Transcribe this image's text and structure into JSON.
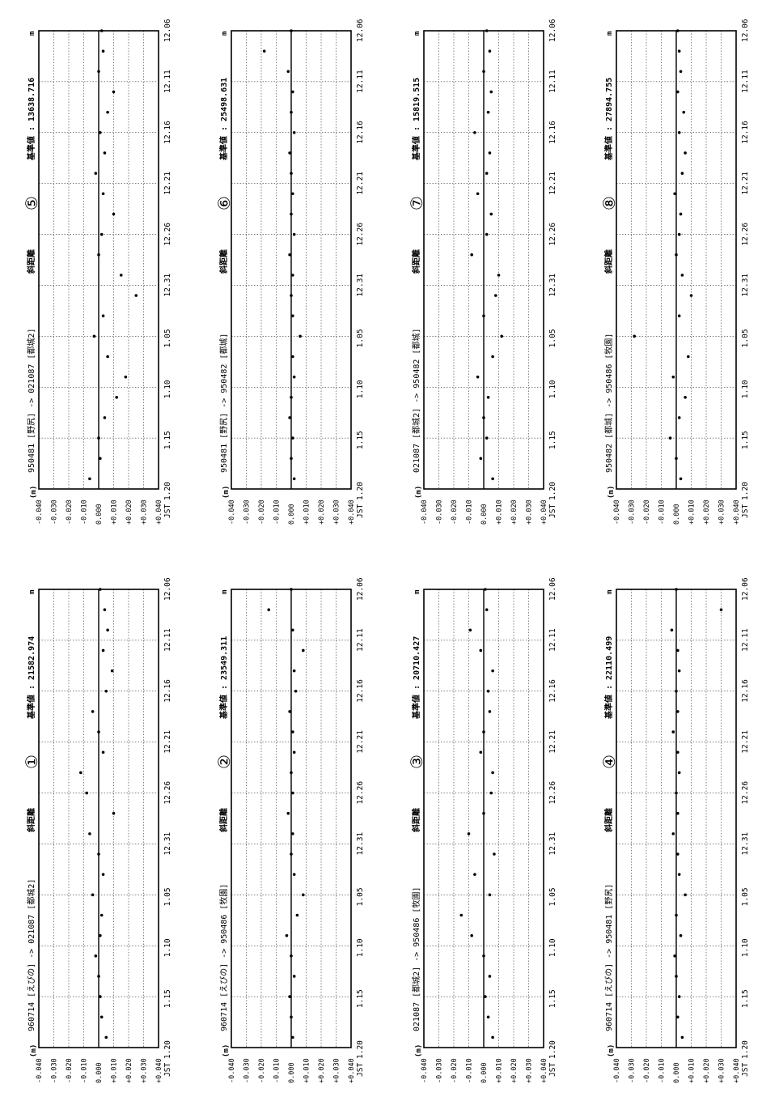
{
  "chart_data": [
    {
      "type": "scatter",
      "number_label": "①",
      "title": "960714 [えびの] -> 021087 [都城2]",
      "measure_label": "斜距離",
      "reference": "基準値 : 21582.974",
      "unit": "m",
      "ylabel": "(m)",
      "xlabel": "JST",
      "x_ticks": [
        "12.06",
        "12.11",
        "12.16",
        "12.21",
        "12.26",
        "12.31",
        "1.05",
        "1.10",
        "1.15",
        "1.20"
      ],
      "y_ticks": [
        "+0.040",
        "+0.030",
        "+0.020",
        "+0.010",
        "0.000",
        "-0.010",
        "-0.020",
        "-0.030",
        "-0.040"
      ],
      "ylim": [
        -0.04,
        0.04
      ],
      "grid": true,
      "series": [
        {
          "x_days": [
            1,
            3,
            5,
            7,
            9,
            11,
            13,
            15,
            17,
            19,
            21,
            23,
            25,
            27,
            29,
            31,
            33,
            35,
            37,
            39,
            41,
            43,
            45
          ],
          "y": [
            0.005,
            0.002,
            0.001,
            0.0,
            -0.002,
            0.001,
            0.002,
            -0.004,
            0.003,
            0.0,
            -0.006,
            0.01,
            -0.008,
            -0.012,
            0.003,
            0.0,
            -0.004,
            0.005,
            0.009,
            0.003,
            0.006,
            0.004,
            0.001
          ]
        }
      ]
    },
    {
      "type": "scatter",
      "number_label": "②",
      "title": "960714 [えびの] -> 950486 [牧園]",
      "measure_label": "斜距離",
      "reference": "基準値 : 23549.311",
      "unit": "m",
      "ylabel": "(m)",
      "xlabel": "JST",
      "x_ticks": [
        "12.06",
        "12.11",
        "12.16",
        "12.21",
        "12.26",
        "12.31",
        "1.05",
        "1.10",
        "1.15",
        "1.20"
      ],
      "y_ticks": [
        "+0.040",
        "+0.030",
        "+0.020",
        "+0.010",
        "0.000",
        "-0.010",
        "-0.020",
        "-0.030",
        "-0.040"
      ],
      "ylim": [
        -0.04,
        0.04
      ],
      "grid": true,
      "series": [
        {
          "x_days": [
            1,
            3,
            5,
            7,
            9,
            11,
            13,
            15,
            17,
            19,
            21,
            23,
            25,
            27,
            29,
            31,
            33,
            35,
            37,
            39,
            41,
            43,
            45
          ],
          "y": [
            0.001,
            0.0,
            -0.001,
            0.002,
            0.0,
            -0.003,
            0.004,
            0.008,
            0.002,
            0.0,
            0.001,
            -0.002,
            0.001,
            0.0,
            0.002,
            0.001,
            -0.001,
            0.003,
            0.002,
            0.008,
            0.001,
            -0.015,
            0.0
          ]
        }
      ]
    },
    {
      "type": "scatter",
      "number_label": "③",
      "title": "021087 [都城2] -> 950486 [牧園]",
      "measure_label": "斜距離",
      "reference": "基準値 : 20710.427",
      "unit": "m",
      "ylabel": "(m)",
      "xlabel": "JST",
      "x_ticks": [
        "12.06",
        "12.11",
        "12.16",
        "12.21",
        "12.26",
        "12.31",
        "1.05",
        "1.10",
        "1.15",
        "1.20"
      ],
      "y_ticks": [
        "+0.040",
        "+0.030",
        "+0.020",
        "+0.010",
        "0.000",
        "-0.010",
        "-0.020",
        "-0.030",
        "-0.040"
      ],
      "ylim": [
        -0.04,
        0.04
      ],
      "grid": true,
      "series": [
        {
          "x_days": [
            1,
            3,
            5,
            7,
            9,
            11,
            13,
            15,
            17,
            19,
            21,
            23,
            25,
            27,
            29,
            31,
            33,
            35,
            37,
            39,
            41,
            43,
            45
          ],
          "y": [
            0.006,
            0.003,
            0.001,
            0.004,
            0.0,
            -0.008,
            -0.015,
            0.004,
            -0.006,
            0.007,
            -0.01,
            0.0,
            0.005,
            0.006,
            -0.002,
            0.0,
            0.004,
            0.003,
            0.006,
            -0.002,
            -0.009,
            0.002,
            0.001
          ]
        }
      ]
    },
    {
      "type": "scatter",
      "number_label": "④",
      "title": "960714 [えびの] -> 950481 [野尻]",
      "measure_label": "斜距離",
      "reference": "基準値 : 22110.499",
      "unit": "m",
      "ylabel": "(m)",
      "xlabel": "JST",
      "x_ticks": [
        "12.06",
        "12.11",
        "12.16",
        "12.21",
        "12.26",
        "12.31",
        "1.05",
        "1.10",
        "1.15",
        "1.20"
      ],
      "y_ticks": [
        "+0.040",
        "+0.030",
        "+0.020",
        "+0.010",
        "0.000",
        "-0.010",
        "-0.020",
        "-0.030",
        "-0.040"
      ],
      "ylim": [
        -0.04,
        0.04
      ],
      "grid": true,
      "series": [
        {
          "x_days": [
            1,
            3,
            5,
            7,
            9,
            11,
            13,
            15,
            17,
            19,
            21,
            23,
            25,
            27,
            29,
            31,
            33,
            35,
            37,
            39,
            41,
            43,
            45
          ],
          "y": [
            0.004,
            0.001,
            0.002,
            0.0,
            -0.001,
            0.003,
            0.0,
            0.006,
            0.002,
            0.001,
            -0.002,
            0.001,
            0.0,
            0.002,
            0.001,
            -0.002,
            0.001,
            0.0,
            0.002,
            0.001,
            -0.003,
            0.03,
            0.0
          ]
        }
      ]
    },
    {
      "type": "scatter",
      "number_label": "⑤",
      "title": "950481 [野尻] -> 021087 [都城2]",
      "measure_label": "斜距離",
      "reference": "基準値 : 13638.716",
      "unit": "m",
      "ylabel": "(m)",
      "xlabel": "JST",
      "x_ticks": [
        "12.06",
        "12.11",
        "12.16",
        "12.21",
        "12.26",
        "12.31",
        "1.05",
        "1.10",
        "1.15",
        "1.20"
      ],
      "y_ticks": [
        "+0.040",
        "+0.030",
        "+0.020",
        "+0.010",
        "0.000",
        "-0.010",
        "-0.020",
        "-0.030",
        "-0.040"
      ],
      "ylim": [
        -0.04,
        0.04
      ],
      "grid": true,
      "series": [
        {
          "x_days": [
            1,
            3,
            5,
            7,
            9,
            11,
            13,
            15,
            17,
            19,
            21,
            23,
            25,
            27,
            29,
            31,
            33,
            35,
            37,
            39,
            41,
            43,
            45
          ],
          "y": [
            -0.006,
            0.001,
            0.0,
            0.004,
            0.012,
            0.018,
            0.006,
            -0.003,
            0.003,
            0.025,
            0.015,
            0.0,
            0.002,
            0.01,
            0.003,
            -0.002,
            0.004,
            0.001,
            0.006,
            0.01,
            0.0,
            0.003,
            0.002
          ]
        }
      ]
    },
    {
      "type": "scatter",
      "number_label": "⑥",
      "title": "950481 [野尻] -> 950482 [都城]",
      "measure_label": "斜距離",
      "reference": "基準値 : 25498.631",
      "unit": "m",
      "ylabel": "(m)",
      "xlabel": "JST",
      "x_ticks": [
        "12.06",
        "12.11",
        "12.16",
        "12.21",
        "12.26",
        "12.31",
        "1.05",
        "1.10",
        "1.15",
        "1.20"
      ],
      "y_ticks": [
        "+0.040",
        "+0.030",
        "+0.020",
        "+0.010",
        "0.000",
        "-0.010",
        "-0.020",
        "-0.030",
        "-0.040"
      ],
      "ylim": [
        -0.04,
        0.04
      ],
      "grid": true,
      "series": [
        {
          "x_days": [
            1,
            3,
            5,
            7,
            9,
            11,
            13,
            15,
            17,
            19,
            21,
            23,
            25,
            27,
            29,
            31,
            33,
            35,
            37,
            39,
            41,
            43,
            45
          ],
          "y": [
            0.002,
            0.0,
            0.001,
            -0.001,
            0.0,
            0.002,
            0.001,
            0.006,
            0.001,
            0.0,
            0.001,
            -0.001,
            0.002,
            0.0,
            0.001,
            0.0,
            -0.001,
            0.002,
            0.0,
            0.001,
            -0.002,
            -0.018,
            0.0
          ]
        }
      ]
    },
    {
      "type": "scatter",
      "number_label": "⑦",
      "title": "021087 [都城2] -> 950482 [都城]",
      "measure_label": "斜距離",
      "reference": "基準値 : 15819.515",
      "unit": "m",
      "ylabel": "(m)",
      "xlabel": "JST",
      "x_ticks": [
        "12.06",
        "12.11",
        "12.16",
        "12.21",
        "12.26",
        "12.31",
        "1.05",
        "1.10",
        "1.15",
        "1.20"
      ],
      "y_ticks": [
        "+0.040",
        "+0.030",
        "+0.020",
        "+0.010",
        "0.000",
        "-0.010",
        "-0.020",
        "-0.030",
        "-0.040"
      ],
      "ylim": [
        -0.04,
        0.04
      ],
      "grid": true,
      "series": [
        {
          "x_days": [
            1,
            3,
            5,
            7,
            9,
            11,
            13,
            15,
            17,
            19,
            21,
            23,
            25,
            27,
            29,
            31,
            33,
            35,
            37,
            39,
            41,
            43,
            45
          ],
          "y": [
            0.006,
            -0.002,
            0.002,
            0.0,
            0.003,
            -0.004,
            0.006,
            0.012,
            0.0,
            0.008,
            0.01,
            -0.008,
            0.002,
            0.005,
            -0.004,
            0.002,
            0.004,
            -0.006,
            0.003,
            0.005,
            0.0,
            0.004,
            0.002
          ]
        }
      ]
    },
    {
      "type": "scatter",
      "number_label": "⑧",
      "title": "950482 [都城] -> 950486 [牧園]",
      "measure_label": "斜距離",
      "reference": "基準値 : 27894.755",
      "unit": "m",
      "ylabel": "(m)",
      "xlabel": "JST",
      "x_ticks": [
        "12.06",
        "12.11",
        "12.16",
        "12.21",
        "12.26",
        "12.31",
        "1.05",
        "1.10",
        "1.15",
        "1.20"
      ],
      "y_ticks": [
        "+0.040",
        "+0.030",
        "+0.020",
        "+0.010",
        "0.000",
        "-0.010",
        "-0.020",
        "-0.030",
        "-0.040"
      ],
      "ylim": [
        -0.04,
        0.04
      ],
      "grid": true,
      "series": [
        {
          "x_days": [
            1,
            3,
            5,
            7,
            9,
            11,
            13,
            15,
            17,
            19,
            21,
            23,
            25,
            27,
            29,
            31,
            33,
            35,
            37,
            39,
            41,
            43,
            45
          ],
          "y": [
            0.003,
            0.0,
            -0.004,
            0.002,
            0.006,
            -0.002,
            0.008,
            -0.028,
            0.002,
            0.01,
            0.004,
            0.0,
            0.002,
            0.003,
            -0.001,
            0.004,
            0.006,
            0.002,
            0.005,
            0.001,
            0.003,
            0.002,
            0.001
          ]
        }
      ]
    }
  ]
}
